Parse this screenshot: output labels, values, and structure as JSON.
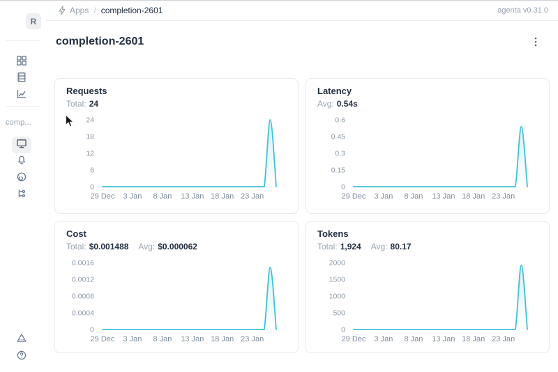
{
  "header": {
    "breadcrumb": {
      "app_section": "Apps",
      "separator": "/",
      "current": "completion-2601"
    },
    "version": "agenta v0.31.0"
  },
  "sidebar": {
    "logo_letter": "R",
    "workspace_label": "comp..."
  },
  "page": {
    "title": "completion-2601"
  },
  "colors": {
    "accent_line": "#3fc0db",
    "text_dark": "#243041",
    "text_gray": "#9aa4b0",
    "card_border": "#e7eaec"
  },
  "chart_data": [
    {
      "id": "requests",
      "type": "line",
      "title": "Requests",
      "stats": [
        {
          "label": "Total:",
          "value": "24"
        }
      ],
      "x_start": "29 Dec",
      "x_end": "27 Jan",
      "x_tick_labels": [
        "29 Dec",
        "3 Jan",
        "8 Jan",
        "13 Jan",
        "18 Jan",
        "23 Jan"
      ],
      "x_tick_indices": [
        0,
        5,
        10,
        15,
        20,
        25
      ],
      "y_tick_values": [
        0,
        6,
        12,
        18,
        24
      ],
      "y_tick_labels": [
        "0",
        "6",
        "12",
        "18",
        "24"
      ],
      "ymax": 24,
      "values": [
        0,
        0,
        0,
        0,
        0,
        0,
        0,
        0,
        0,
        0,
        0,
        0,
        0,
        0,
        0,
        0,
        0,
        0,
        0,
        0,
        0,
        0,
        0,
        0,
        0,
        0,
        0,
        0,
        24,
        0
      ],
      "peak": {
        "x_label": "26 Jan",
        "value": 24
      },
      "grid": false,
      "legend": false
    },
    {
      "id": "latency",
      "type": "line",
      "title": "Latency",
      "stats": [
        {
          "label": "Avg:",
          "value": "0.54s"
        }
      ],
      "x_start": "29 Dec",
      "x_end": "27 Jan",
      "x_tick_labels": [
        "29 Dec",
        "3 Jan",
        "8 Jan",
        "13 Jan",
        "18 Jan",
        "23 Jan"
      ],
      "x_tick_indices": [
        0,
        5,
        10,
        15,
        20,
        25
      ],
      "y_tick_values": [
        0,
        0.15,
        0.3,
        0.45,
        0.6
      ],
      "y_tick_labels": [
        "0",
        "0.15",
        "0.3",
        "0.45",
        "0.6"
      ],
      "ymax": 0.6,
      "values": [
        0,
        0,
        0,
        0,
        0,
        0,
        0,
        0,
        0,
        0,
        0,
        0,
        0,
        0,
        0,
        0,
        0,
        0,
        0,
        0,
        0,
        0,
        0,
        0,
        0,
        0,
        0,
        0,
        0.54,
        0
      ],
      "peak": {
        "x_label": "26 Jan",
        "value": 0.54
      },
      "grid": false,
      "legend": false
    },
    {
      "id": "cost",
      "type": "line",
      "title": "Cost",
      "stats": [
        {
          "label": "Total:",
          "value": "$0.001488"
        },
        {
          "label": "Avg:",
          "value": "$0.000062"
        }
      ],
      "x_start": "29 Dec",
      "x_end": "27 Jan",
      "x_tick_labels": [
        "29 Dec",
        "3 Jan",
        "8 Jan",
        "13 Jan",
        "18 Jan",
        "23 Jan"
      ],
      "x_tick_indices": [
        0,
        5,
        10,
        15,
        20,
        25
      ],
      "y_tick_values": [
        0,
        0.0004,
        0.0008,
        0.0012,
        0.0016
      ],
      "y_tick_labels": [
        "0",
        "0.0004",
        "0.0008",
        "0.0012",
        "0.0016"
      ],
      "ymax": 0.0016,
      "values": [
        0,
        0,
        0,
        0,
        0,
        0,
        0,
        0,
        0,
        0,
        0,
        0,
        0,
        0,
        0,
        0,
        0,
        0,
        0,
        0,
        0,
        0,
        0,
        0,
        0,
        0,
        0,
        0,
        0.001488,
        0
      ],
      "peak": {
        "x_label": "26 Jan",
        "value": 0.001488
      },
      "grid": false,
      "legend": false
    },
    {
      "id": "tokens",
      "type": "line",
      "title": "Tokens",
      "stats": [
        {
          "label": "Total:",
          "value": "1,924"
        },
        {
          "label": "Avg:",
          "value": "80.17"
        }
      ],
      "x_start": "29 Dec",
      "x_end": "27 Jan",
      "x_tick_labels": [
        "29 Dec",
        "3 Jan",
        "8 Jan",
        "13 Jan",
        "18 Jan",
        "23 Jan"
      ],
      "x_tick_indices": [
        0,
        5,
        10,
        15,
        20,
        25
      ],
      "y_tick_values": [
        0,
        500,
        1000,
        1500,
        2000
      ],
      "y_tick_labels": [
        "0",
        "500",
        "1000",
        "1500",
        "2000"
      ],
      "ymax": 2000,
      "values": [
        0,
        0,
        0,
        0,
        0,
        0,
        0,
        0,
        0,
        0,
        0,
        0,
        0,
        0,
        0,
        0,
        0,
        0,
        0,
        0,
        0,
        0,
        0,
        0,
        0,
        0,
        0,
        0,
        1924,
        0
      ],
      "peak": {
        "x_label": "26 Jan",
        "value": 1924
      },
      "grid": false,
      "legend": false
    }
  ]
}
